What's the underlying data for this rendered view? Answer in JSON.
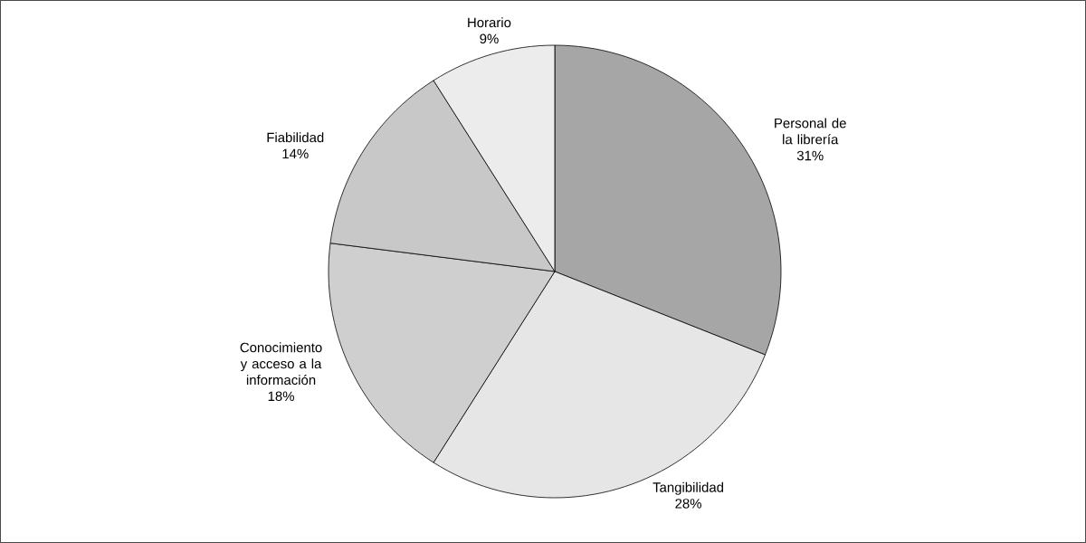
{
  "chart_data": {
    "type": "pie",
    "categories": [
      "Personal de la librería",
      "Tangibilidad",
      "Conocimiento y acceso a la información",
      "Fiabilidad",
      "Horario"
    ],
    "values": [
      31,
      28,
      18,
      14,
      9
    ],
    "value_labels": [
      "31%",
      "28%",
      "18%",
      "14%",
      "9%"
    ],
    "colors": [
      "#a6a6a6",
      "#e6e6e6",
      "#cfcfcf",
      "#c8c8c8",
      "#ececec"
    ]
  }
}
